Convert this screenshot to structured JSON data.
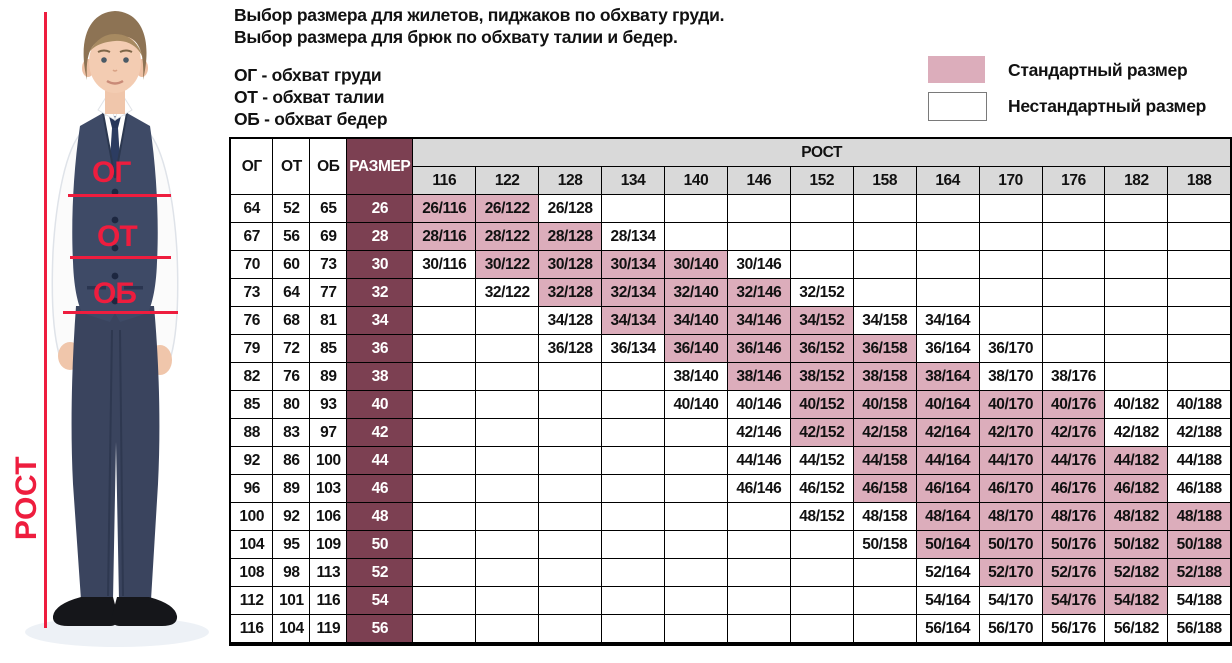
{
  "intro": {
    "line1": "Выбор размера для жилетов, пиджаков по обхвату груди.",
    "line2": "Выбор размера для брюк по обхвату талии и бедер.",
    "abbr": [
      "ОГ - обхват груди",
      "ОТ - обхват талии",
      "ОБ - обхват бедер"
    ]
  },
  "legend": {
    "standard_label": "Стандартный размер",
    "nonstandard_label": "Нестандартный размер",
    "standard_color": "#dcadbb",
    "nonstandard_color": "#ffffff"
  },
  "figure": {
    "chest_label": "ОГ",
    "waist_label": "ОТ",
    "hips_label": "ОБ",
    "height_label": "РОСТ",
    "annotation_color": "#ee1d3e"
  },
  "colors": {
    "standard_pink": "#dcadbb",
    "size_column_maroon": "#7c4052",
    "header_gray": "#d9d9d9"
  },
  "chart_data": {
    "type": "table",
    "column_headers": [
      "ОГ",
      "ОТ",
      "ОБ",
      "РАЗМЕР"
    ],
    "height_group_label": "РОСТ",
    "heights": [
      "116",
      "122",
      "128",
      "134",
      "140",
      "146",
      "152",
      "158",
      "164",
      "170",
      "176",
      "182",
      "188"
    ],
    "legend_note": "cells: [label, 1=standard pink / 0=non-standard white], null=empty",
    "rows": [
      {
        "og": "64",
        "ot": "52",
        "ob": "65",
        "size": "26",
        "cells": [
          [
            "26/116",
            1
          ],
          [
            "26/122",
            1
          ],
          [
            "26/128",
            0
          ],
          null,
          null,
          null,
          null,
          null,
          null,
          null,
          null,
          null,
          null
        ]
      },
      {
        "og": "67",
        "ot": "56",
        "ob": "69",
        "size": "28",
        "cells": [
          [
            "28/116",
            1
          ],
          [
            "28/122",
            1
          ],
          [
            "28/128",
            1
          ],
          [
            "28/134",
            0
          ],
          null,
          null,
          null,
          null,
          null,
          null,
          null,
          null,
          null
        ]
      },
      {
        "og": "70",
        "ot": "60",
        "ob": "73",
        "size": "30",
        "cells": [
          [
            "30/116",
            0
          ],
          [
            "30/122",
            1
          ],
          [
            "30/128",
            1
          ],
          [
            "30/134",
            1
          ],
          [
            "30/140",
            1
          ],
          [
            "30/146",
            0
          ],
          null,
          null,
          null,
          null,
          null,
          null,
          null
        ]
      },
      {
        "og": "73",
        "ot": "64",
        "ob": "77",
        "size": "32",
        "cells": [
          null,
          [
            "32/122",
            0
          ],
          [
            "32/128",
            1
          ],
          [
            "32/134",
            1
          ],
          [
            "32/140",
            1
          ],
          [
            "32/146",
            1
          ],
          [
            "32/152",
            0
          ],
          null,
          null,
          null,
          null,
          null,
          null
        ]
      },
      {
        "og": "76",
        "ot": "68",
        "ob": "81",
        "size": "34",
        "cells": [
          null,
          null,
          [
            "34/128",
            0
          ],
          [
            "34/134",
            1
          ],
          [
            "34/140",
            1
          ],
          [
            "34/146",
            1
          ],
          [
            "34/152",
            1
          ],
          [
            "34/158",
            0
          ],
          [
            "34/164",
            0
          ],
          null,
          null,
          null,
          null
        ]
      },
      {
        "og": "79",
        "ot": "72",
        "ob": "85",
        "size": "36",
        "cells": [
          null,
          null,
          [
            "36/128",
            0
          ],
          [
            "36/134",
            0
          ],
          [
            "36/140",
            1
          ],
          [
            "36/146",
            1
          ],
          [
            "36/152",
            1
          ],
          [
            "36/158",
            1
          ],
          [
            "36/164",
            0
          ],
          [
            "36/170",
            0
          ],
          null,
          null,
          null
        ]
      },
      {
        "og": "82",
        "ot": "76",
        "ob": "89",
        "size": "38",
        "cells": [
          null,
          null,
          null,
          null,
          [
            "38/140",
            0
          ],
          [
            "38/146",
            1
          ],
          [
            "38/152",
            1
          ],
          [
            "38/158",
            1
          ],
          [
            "38/164",
            1
          ],
          [
            "38/170",
            0
          ],
          [
            "38/176",
            0
          ],
          null,
          null
        ]
      },
      {
        "og": "85",
        "ot": "80",
        "ob": "93",
        "size": "40",
        "cells": [
          null,
          null,
          null,
          null,
          [
            "40/140",
            0
          ],
          [
            "40/146",
            0
          ],
          [
            "40/152",
            1
          ],
          [
            "40/158",
            1
          ],
          [
            "40/164",
            1
          ],
          [
            "40/170",
            1
          ],
          [
            "40/176",
            1
          ],
          [
            "40/182",
            0
          ],
          [
            "40/188",
            0
          ]
        ]
      },
      {
        "og": "88",
        "ot": "83",
        "ob": "97",
        "size": "42",
        "cells": [
          null,
          null,
          null,
          null,
          null,
          [
            "42/146",
            0
          ],
          [
            "42/152",
            1
          ],
          [
            "42/158",
            1
          ],
          [
            "42/164",
            1
          ],
          [
            "42/170",
            1
          ],
          [
            "42/176",
            1
          ],
          [
            "42/182",
            0
          ],
          [
            "42/188",
            0
          ]
        ]
      },
      {
        "og": "92",
        "ot": "86",
        "ob": "100",
        "size": "44",
        "cells": [
          null,
          null,
          null,
          null,
          null,
          [
            "44/146",
            0
          ],
          [
            "44/152",
            0
          ],
          [
            "44/158",
            1
          ],
          [
            "44/164",
            1
          ],
          [
            "44/170",
            1
          ],
          [
            "44/176",
            1
          ],
          [
            "44/182",
            1
          ],
          [
            "44/188",
            0
          ]
        ]
      },
      {
        "og": "96",
        "ot": "89",
        "ob": "103",
        "size": "46",
        "cells": [
          null,
          null,
          null,
          null,
          null,
          [
            "46/146",
            0
          ],
          [
            "46/152",
            0
          ],
          [
            "46/158",
            1
          ],
          [
            "46/164",
            1
          ],
          [
            "46/170",
            1
          ],
          [
            "46/176",
            1
          ],
          [
            "46/182",
            1
          ],
          [
            "46/188",
            0
          ]
        ]
      },
      {
        "og": "100",
        "ot": "92",
        "ob": "106",
        "size": "48",
        "cells": [
          null,
          null,
          null,
          null,
          null,
          null,
          [
            "48/152",
            0
          ],
          [
            "48/158",
            0
          ],
          [
            "48/164",
            1
          ],
          [
            "48/170",
            1
          ],
          [
            "48/176",
            1
          ],
          [
            "48/182",
            1
          ],
          [
            "48/188",
            1
          ]
        ]
      },
      {
        "og": "104",
        "ot": "95",
        "ob": "109",
        "size": "50",
        "cells": [
          null,
          null,
          null,
          null,
          null,
          null,
          null,
          [
            "50/158",
            0
          ],
          [
            "50/164",
            1
          ],
          [
            "50/170",
            1
          ],
          [
            "50/176",
            1
          ],
          [
            "50/182",
            1
          ],
          [
            "50/188",
            1
          ]
        ]
      },
      {
        "og": "108",
        "ot": "98",
        "ob": "113",
        "size": "52",
        "cells": [
          null,
          null,
          null,
          null,
          null,
          null,
          null,
          null,
          [
            "52/164",
            0
          ],
          [
            "52/170",
            1
          ],
          [
            "52/176",
            1
          ],
          [
            "52/182",
            1
          ],
          [
            "52/188",
            1
          ]
        ]
      },
      {
        "og": "112",
        "ot": "101",
        "ob": "116",
        "size": "54",
        "cells": [
          null,
          null,
          null,
          null,
          null,
          null,
          null,
          null,
          [
            "54/164",
            0
          ],
          [
            "54/170",
            0
          ],
          [
            "54/176",
            1
          ],
          [
            "54/182",
            1
          ],
          [
            "54/188",
            0
          ]
        ]
      },
      {
        "og": "116",
        "ot": "104",
        "ob": "119",
        "size": "56",
        "cells": [
          null,
          null,
          null,
          null,
          null,
          null,
          null,
          null,
          [
            "56/164",
            0
          ],
          [
            "56/170",
            0
          ],
          [
            "56/176",
            0
          ],
          [
            "56/182",
            0
          ],
          [
            "56/188",
            0
          ]
        ]
      }
    ]
  }
}
